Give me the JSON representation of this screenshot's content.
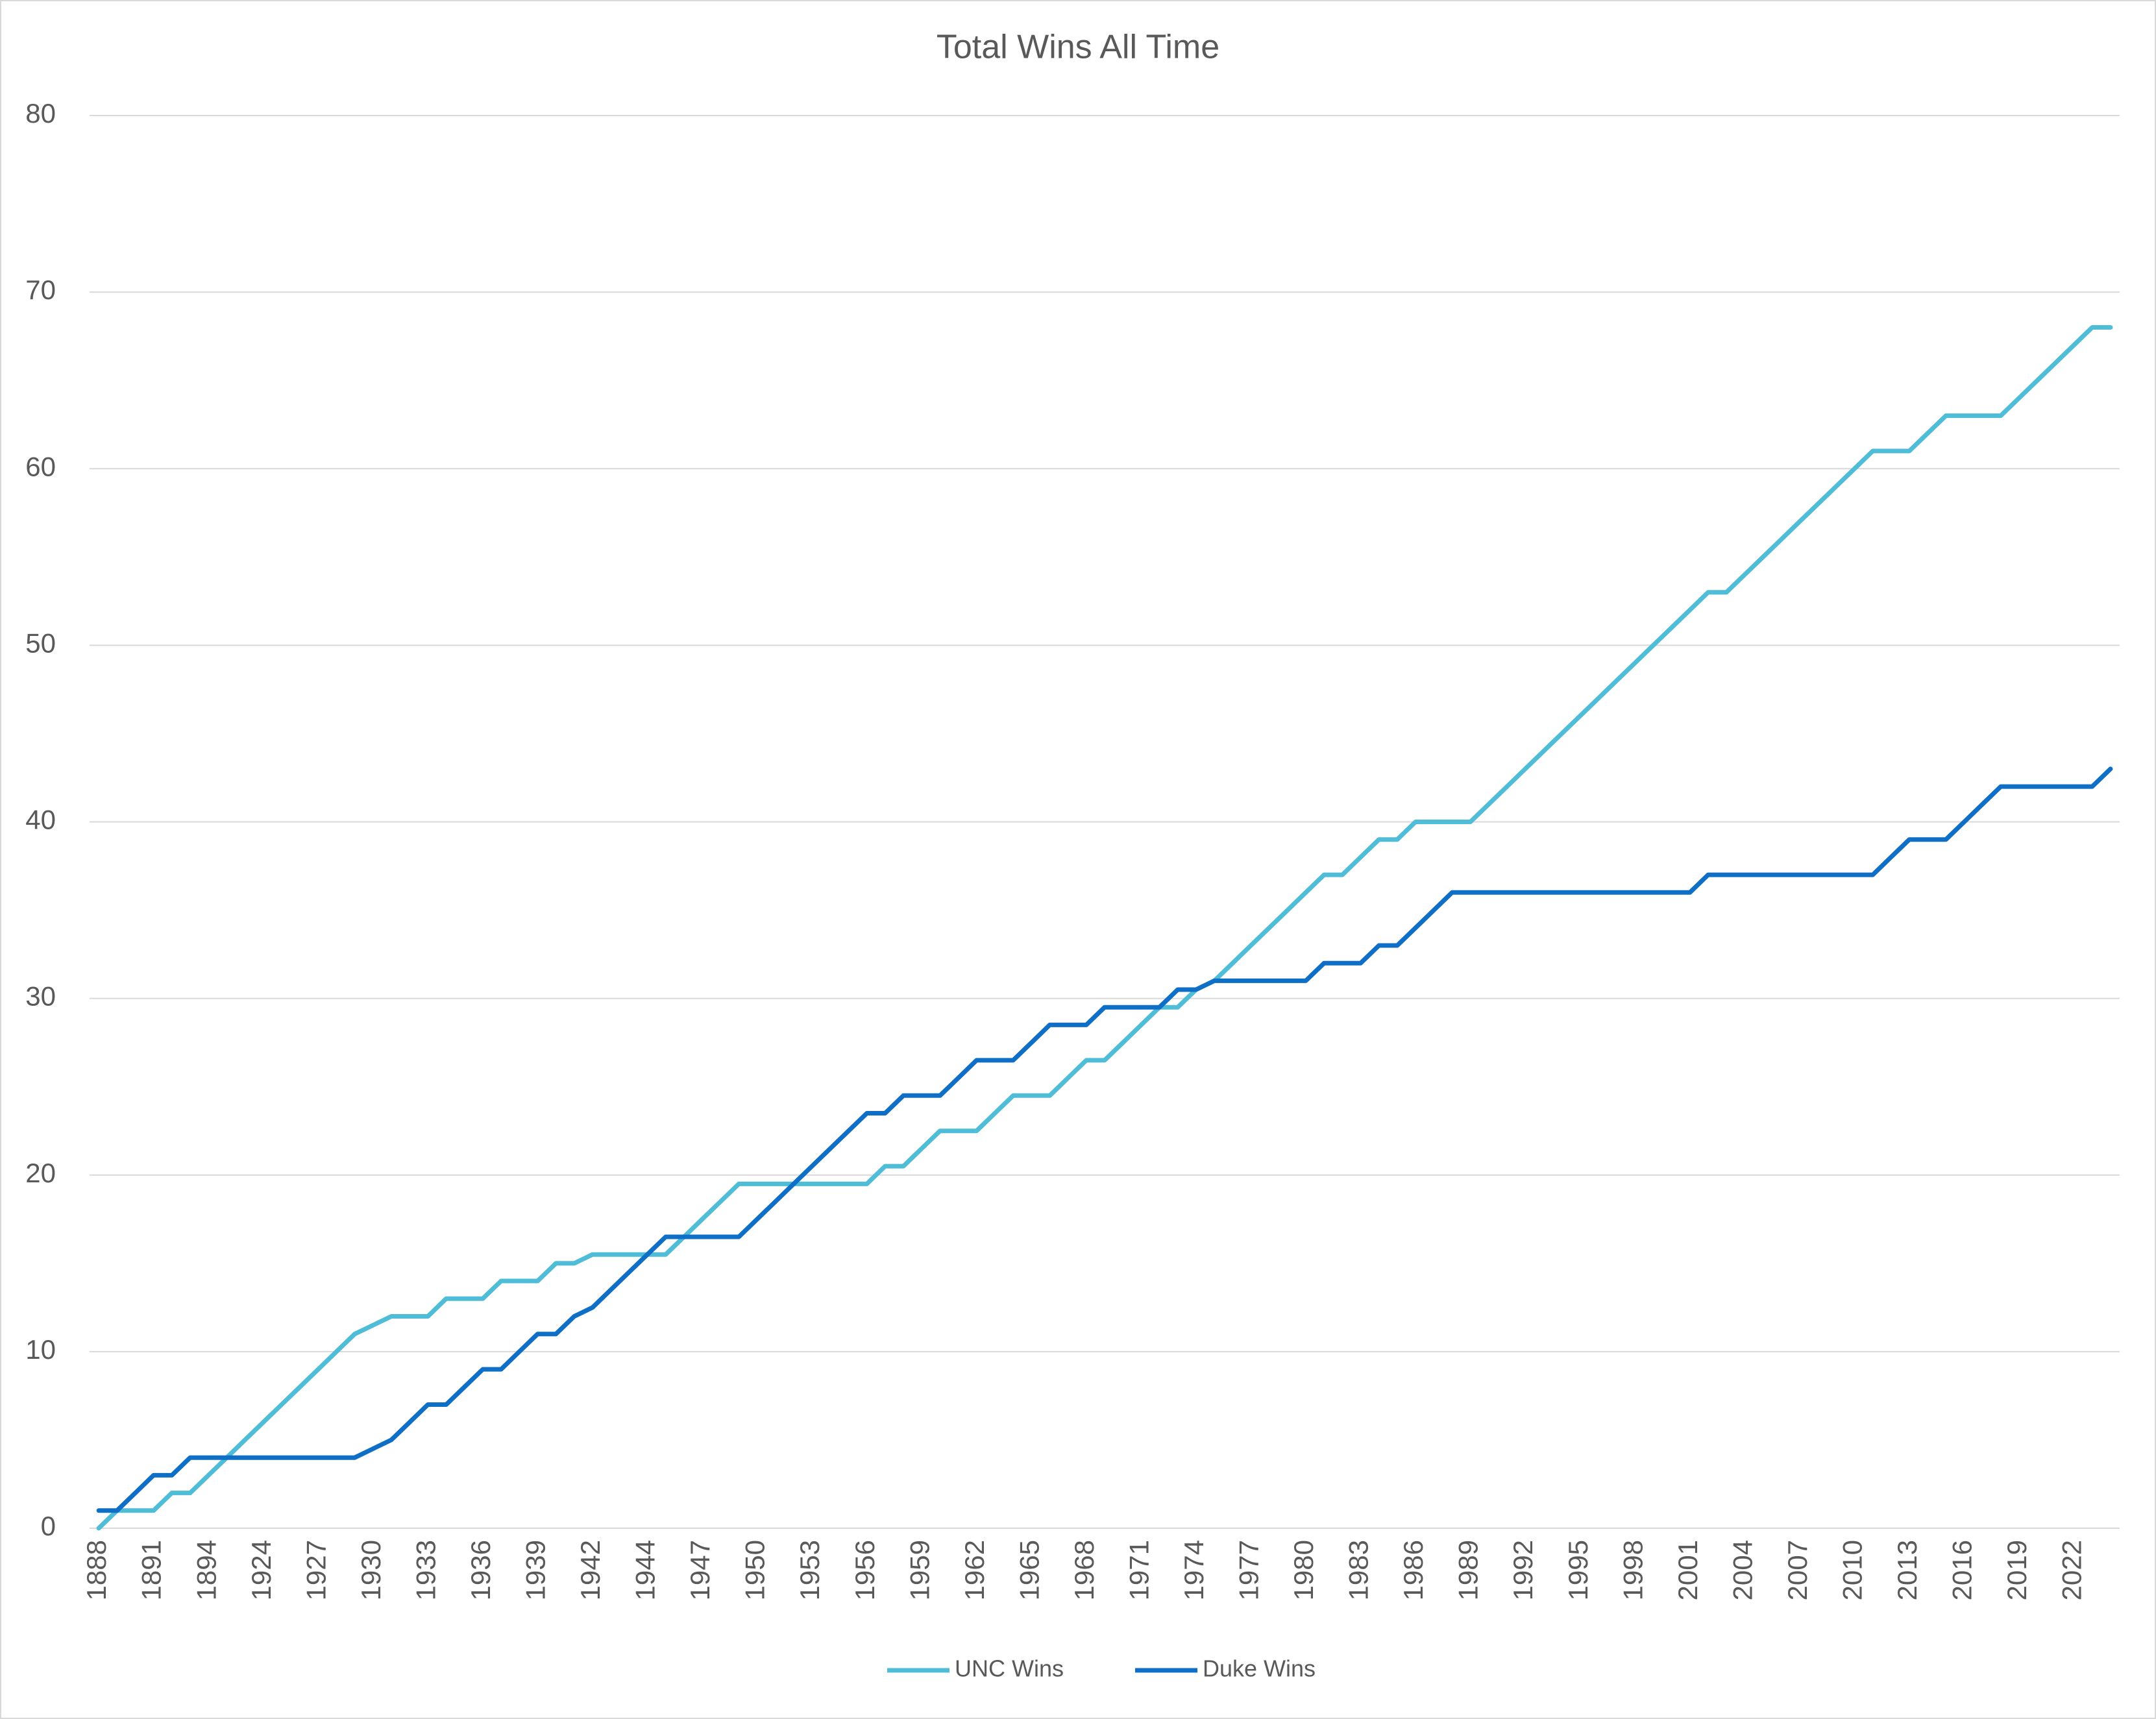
{
  "chart_data": {
    "type": "line",
    "title": "Total Wins All Time",
    "categories": [
      "1888",
      null,
      null,
      "1891",
      null,
      null,
      "1894",
      null,
      null,
      "1924",
      null,
      null,
      "1927",
      null,
      null,
      "1930",
      null,
      null,
      "1933",
      null,
      null,
      "1936",
      null,
      null,
      "1939",
      null,
      null,
      "1942",
      null,
      null,
      "1944",
      null,
      null,
      "1947",
      null,
      null,
      "1950",
      null,
      null,
      "1953",
      null,
      null,
      "1956",
      null,
      null,
      "1959",
      null,
      null,
      "1962",
      null,
      null,
      "1965",
      null,
      null,
      "1968",
      null,
      null,
      "1971",
      null,
      null,
      "1974",
      null,
      null,
      "1977",
      null,
      null,
      "1980",
      null,
      null,
      "1983",
      null,
      null,
      "1986",
      null,
      null,
      "1989",
      null,
      null,
      "1992",
      null,
      null,
      "1995",
      null,
      null,
      "1998",
      null,
      null,
      "2001",
      null,
      null,
      "2004",
      null,
      null,
      "2007",
      null,
      null,
      "2010",
      null,
      null,
      "2013",
      null,
      null,
      "2016",
      null,
      null,
      "2019",
      null,
      null,
      "2022",
      null,
      null
    ],
    "series": [
      {
        "name": "UNC Wins",
        "color": "#4fbcd8",
        "values": [
          0,
          1,
          1,
          1,
          2,
          2,
          3,
          4,
          5,
          6,
          7,
          8,
          9,
          10,
          11,
          11.5,
          12,
          12,
          12,
          13,
          13,
          13,
          14,
          14,
          14,
          15,
          15,
          15.5,
          15.5,
          15.5,
          15.5,
          15.5,
          16.5,
          17.5,
          18.5,
          19.5,
          19.5,
          19.5,
          19.5,
          19.5,
          19.5,
          19.5,
          19.5,
          20.5,
          20.5,
          21.5,
          22.5,
          22.5,
          22.5,
          23.5,
          24.5,
          24.5,
          24.5,
          25.5,
          26.5,
          26.5,
          27.5,
          28.5,
          29.5,
          29.5,
          30.5,
          31,
          32,
          33,
          34,
          35,
          36,
          37,
          37,
          38,
          39,
          39,
          40,
          40,
          40,
          40,
          41,
          42,
          43,
          44,
          45,
          46,
          47,
          48,
          49,
          50,
          51,
          52,
          53,
          53,
          54,
          55,
          56,
          57,
          58,
          59,
          60,
          61,
          61,
          61,
          62,
          63,
          63,
          63,
          63,
          64,
          65,
          66,
          67,
          68,
          68
        ]
      },
      {
        "name": "Duke Wins",
        "color": "#0f6fc6",
        "values": [
          1,
          1,
          2,
          3,
          3,
          4,
          4,
          4,
          4,
          4,
          4,
          4,
          4,
          4,
          4,
          4.5,
          5,
          6,
          7,
          7,
          8,
          9,
          9,
          10,
          11,
          11,
          12,
          12.5,
          13.5,
          14.5,
          15.5,
          16.5,
          16.5,
          16.5,
          16.5,
          16.5,
          17.5,
          18.5,
          19.5,
          20.5,
          21.5,
          22.5,
          23.5,
          23.5,
          24.5,
          24.5,
          24.5,
          25.5,
          26.5,
          26.5,
          26.5,
          27.5,
          28.5,
          28.5,
          28.5,
          29.5,
          29.5,
          29.5,
          29.5,
          30.5,
          30.5,
          31,
          31,
          31,
          31,
          31,
          31,
          32,
          32,
          32,
          33,
          33,
          34,
          35,
          36,
          36,
          36,
          36,
          36,
          36,
          36,
          36,
          36,
          36,
          36,
          36,
          36,
          36,
          37,
          37,
          37,
          37,
          37,
          37,
          37,
          37,
          37,
          37,
          38,
          39,
          39,
          39,
          40,
          41,
          42,
          42,
          42,
          42,
          42,
          42,
          43
        ]
      }
    ],
    "ylim": [
      0,
      80
    ],
    "yticks": [
      0,
      10,
      20,
      30,
      40,
      50,
      60,
      70,
      80
    ],
    "grid": true,
    "legend": "bottom"
  }
}
